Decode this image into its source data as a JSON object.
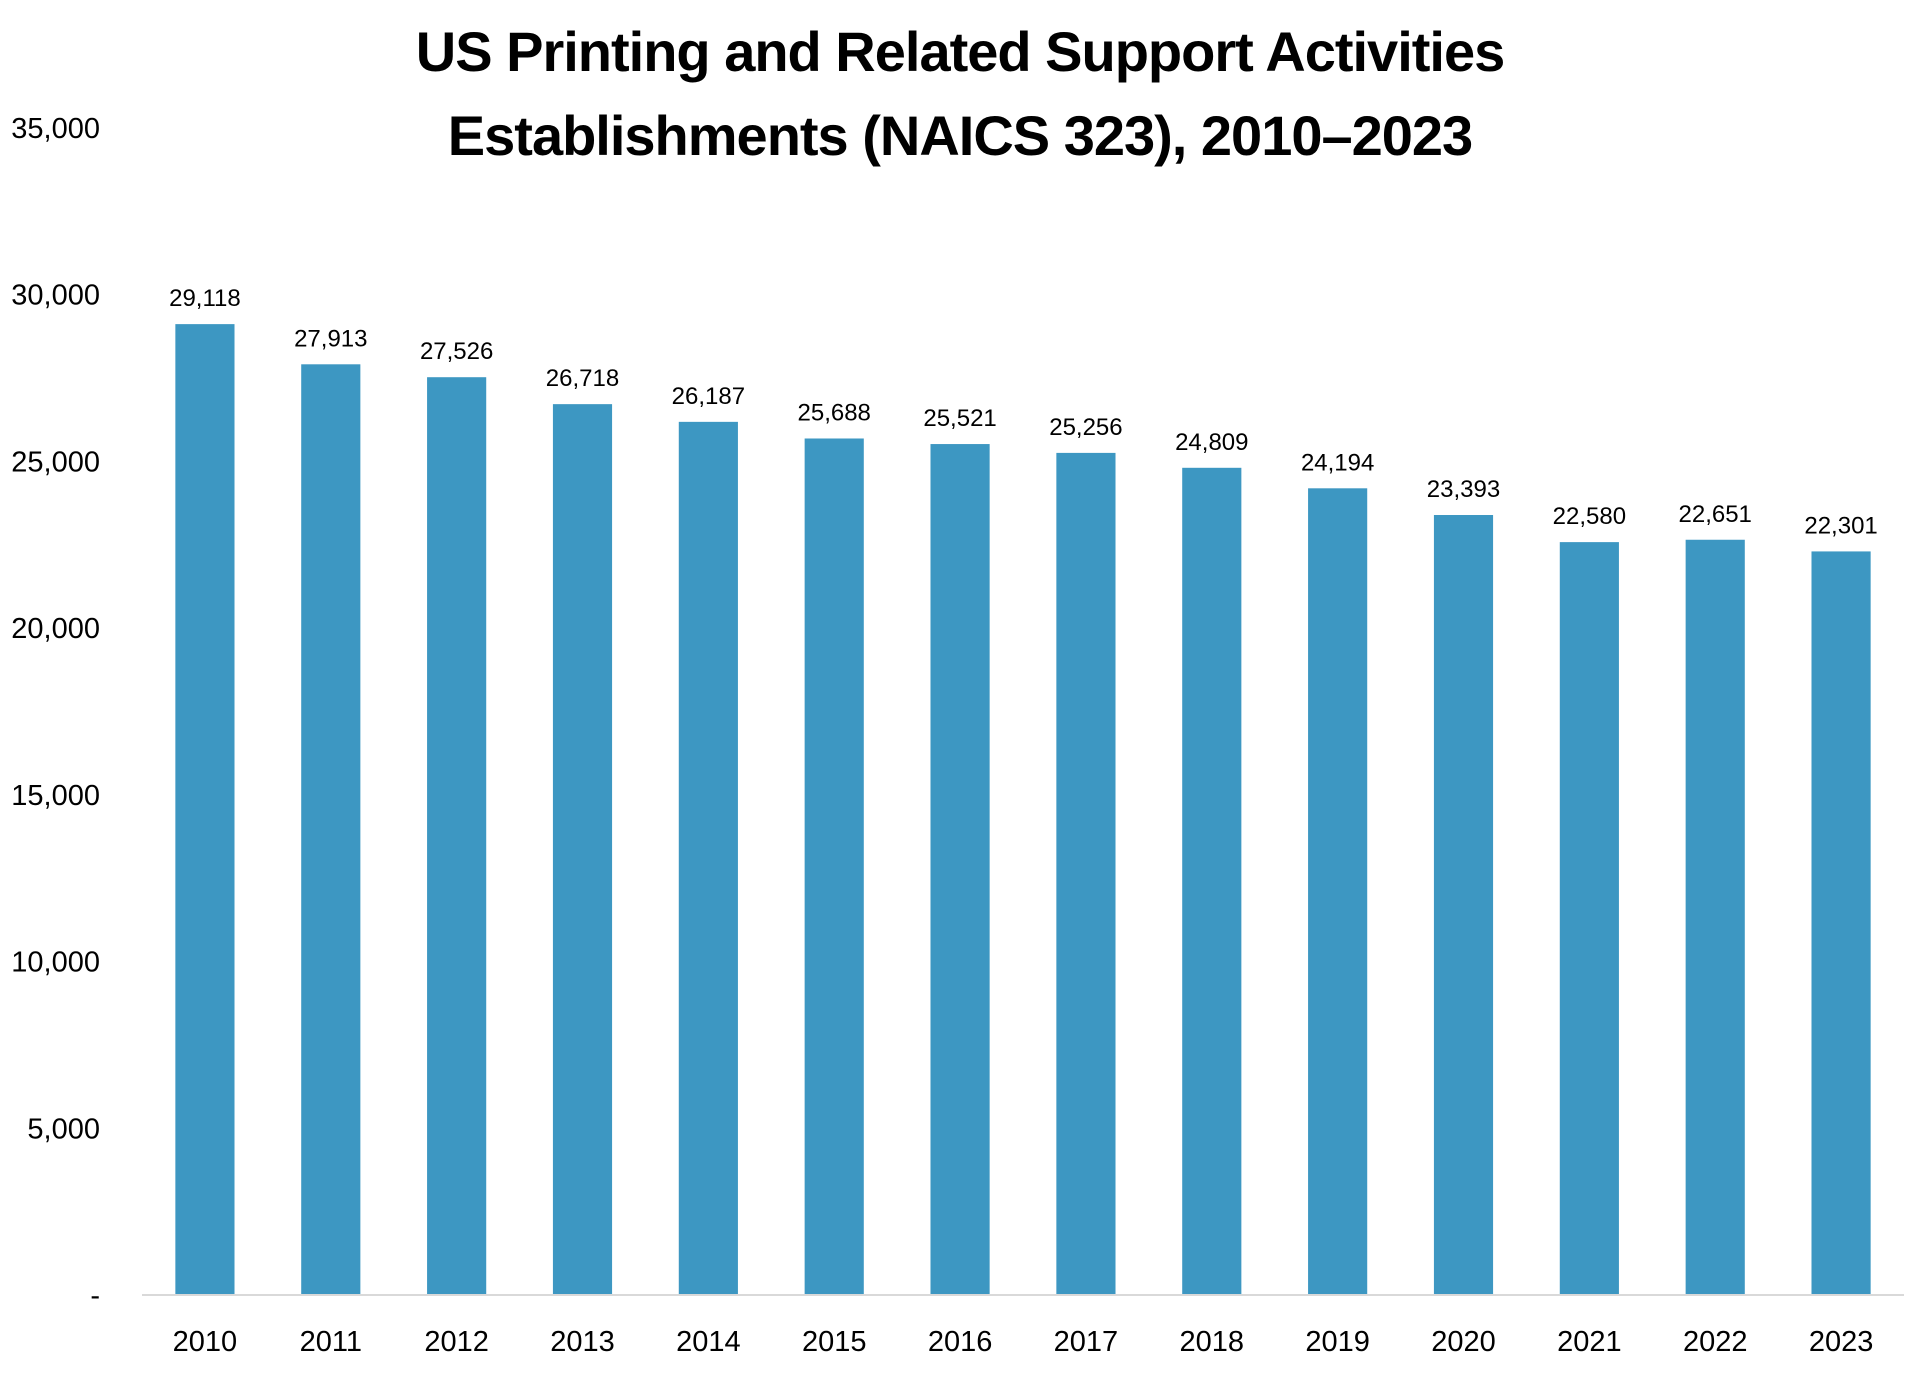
{
  "chart_data": {
    "type": "bar",
    "title_lines": [
      "US Printing and Related Support Activities",
      "Establishments (NAICS 323), 2010–2023"
    ],
    "xlabel": "",
    "ylabel": "",
    "categories": [
      "2010",
      "2011",
      "2012",
      "2013",
      "2014",
      "2015",
      "2016",
      "2017",
      "2018",
      "2019",
      "2020",
      "2021",
      "2022",
      "2023"
    ],
    "values": [
      29118,
      27913,
      27526,
      26718,
      26187,
      25688,
      25521,
      25256,
      24809,
      24194,
      23393,
      22580,
      22651,
      22301
    ],
    "value_labels": [
      "29,118",
      "27,913",
      "27,526",
      "26,718",
      "26,187",
      "25,688",
      "25,521",
      "25,256",
      "24,809",
      "24,194",
      "23,393",
      "22,580",
      "22,651",
      "22,301"
    ],
    "ylim": [
      0,
      35000
    ],
    "yticks": [
      0,
      5000,
      10000,
      15000,
      20000,
      25000,
      30000,
      35000
    ],
    "ytick_labels": [
      "-",
      "5,000",
      "10,000",
      "15,000",
      "20,000",
      "25,000",
      "30,000",
      "35,000"
    ],
    "grid": false,
    "legend": "none",
    "bar_color": "#3d97c2",
    "axis_color": "#d9d9d9"
  }
}
